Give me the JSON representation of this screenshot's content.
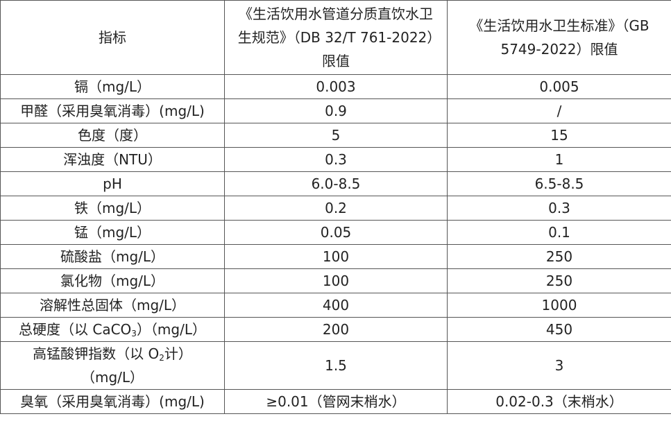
{
  "table": {
    "header": [
      "指标",
      "《生活饮用水管道分质直饮水卫生规范》（DB 32/T 761-2022）限值",
      "《生活饮用水卫生标准》（GB 5749-2022）限值"
    ],
    "rows": [
      [
        "镉（mg/L）",
        "0.003",
        "0.005"
      ],
      [
        "甲醛（采用臭氧消毒）(mg/L)",
        "0.9",
        "/"
      ],
      [
        "色度（度）",
        "5",
        "15"
      ],
      [
        "浑浊度（NTU）",
        "0.3",
        "1"
      ],
      [
        "pH",
        "6.0-8.5",
        "6.5-8.5"
      ],
      [
        "铁（mg/L）",
        "0.2",
        "0.3"
      ],
      [
        "锰（mg/L）",
        "0.05",
        "0.1"
      ],
      [
        "硫酸盐（mg/L）",
        "100",
        "250"
      ],
      [
        "氯化物（mg/L）",
        "100",
        "250"
      ],
      [
        "溶解性总固体（mg/L）",
        "400",
        "1000"
      ],
      [
        {
          "text": "总硬度（以 CaCO",
          "sub": "3",
          "tail": "）（mg/L）"
        },
        "200",
        "450"
      ],
      [
        {
          "text": "高锰酸钾指数（以 O",
          "sub": "2",
          "tail": "计）（mg/L）"
        },
        "1.5",
        "3"
      ],
      [
        "臭氧（采用臭氧消毒）(mg/L)",
        "≥0.01（管网末梢水）",
        "0.02-0.3（末梢水）"
      ]
    ]
  }
}
